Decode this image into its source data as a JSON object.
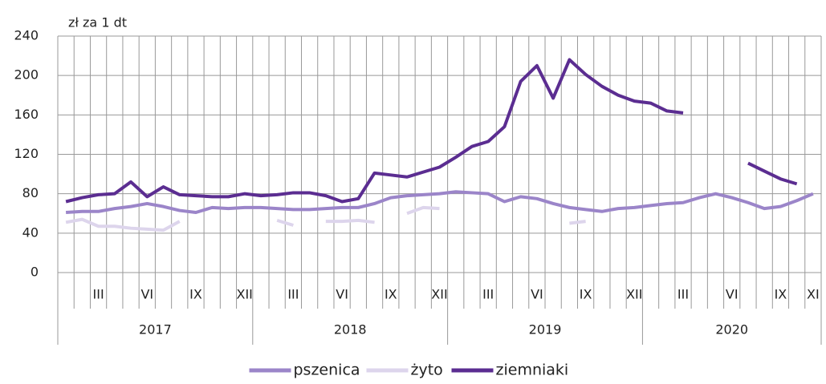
{
  "chart_data": {
    "type": "line",
    "y_label": "zł za 1 dt",
    "categories": [
      null,
      null,
      "III",
      null,
      null,
      "VI",
      null,
      null,
      "IX",
      null,
      null,
      "XII",
      null,
      null,
      "III",
      null,
      null,
      "VI",
      null,
      null,
      "IX",
      null,
      null,
      "XII",
      null,
      null,
      "III",
      null,
      null,
      "VI",
      null,
      null,
      "IX",
      null,
      null,
      "XII",
      null,
      null,
      "III",
      null,
      null,
      "VI",
      null,
      null,
      "IX",
      null,
      "XI"
    ],
    "x_groups": [
      "2017",
      "2018",
      "2019",
      "2020"
    ],
    "ylim": [
      0,
      240
    ],
    "yticks": [
      0,
      40,
      80,
      120,
      160,
      200,
      240
    ],
    "grid": true,
    "legend": "bottom",
    "series": [
      {
        "name": "pszenica",
        "color": "#9b85c9",
        "values": [
          61,
          62,
          62,
          65,
          67,
          70,
          67,
          63,
          61,
          66,
          65,
          66,
          66,
          65,
          64,
          64,
          65,
          66,
          66,
          70,
          76,
          78,
          79,
          80,
          82,
          81,
          80,
          72,
          77,
          75,
          70,
          66,
          64,
          62,
          65,
          66,
          68,
          70,
          71,
          76,
          80,
          76,
          71,
          65,
          67,
          73,
          80
        ]
      },
      {
        "name": "żyto",
        "color": "#ddd5ec",
        "values": [
          51,
          54,
          47,
          47,
          45,
          44,
          43,
          52,
          null,
          null,
          null,
          null,
          null,
          53,
          48,
          null,
          52,
          52,
          53,
          51,
          null,
          60,
          66,
          65,
          null,
          null,
          null,
          null,
          null,
          null,
          null,
          50,
          52,
          null,
          null,
          null,
          null,
          null,
          null,
          null,
          null,
          null,
          null,
          null,
          null,
          null,
          null
        ]
      },
      {
        "name": "ziemniaki",
        "color": "#5b2d91",
        "values": [
          72,
          76,
          79,
          80,
          92,
          77,
          87,
          79,
          78,
          77,
          77,
          80,
          78,
          79,
          81,
          81,
          78,
          72,
          75,
          101,
          99,
          97,
          102,
          107,
          117,
          128,
          133,
          148,
          194,
          210,
          177,
          216,
          201,
          189,
          180,
          174,
          172,
          164,
          162,
          null,
          null,
          null,
          111,
          103,
          95,
          90,
          null
        ]
      }
    ]
  }
}
